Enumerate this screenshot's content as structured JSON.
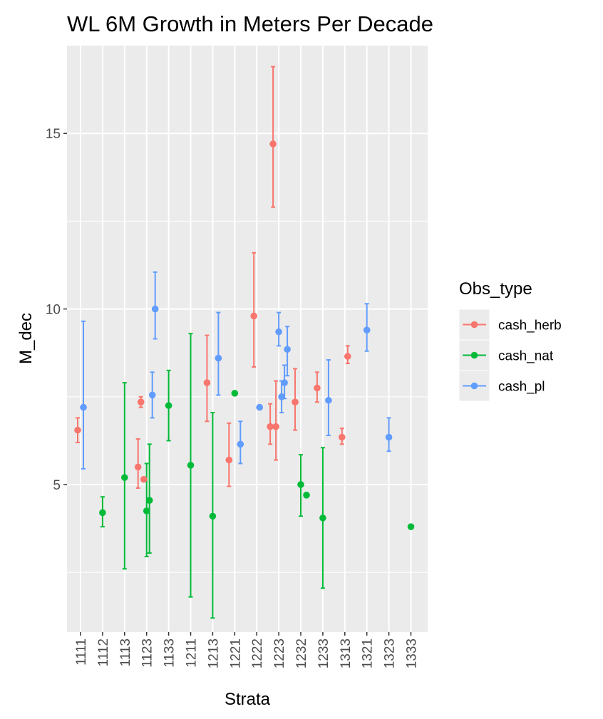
{
  "chart_data": {
    "type": "scatter",
    "title": "WL 6M Growth in Meters Per Decade",
    "xlabel": "Strata",
    "ylabel": "M_dec",
    "categories": [
      "1111",
      "1112",
      "1113",
      "1123",
      "1133",
      "1211",
      "1213",
      "1221",
      "1222",
      "1223",
      "1232",
      "1233",
      "1313",
      "1321",
      "1323",
      "1333"
    ],
    "ylim": [
      0.8,
      17.5
    ],
    "yticks": [
      5,
      10,
      15
    ],
    "grid": true,
    "legend": {
      "title": "Obs_type",
      "position": "right",
      "entries": [
        "cash_herb",
        "cash_nat",
        "cash_pl"
      ]
    },
    "series": [
      {
        "name": "cash_herb",
        "color": "#F8766D",
        "points": [
          {
            "x": "1111",
            "y": 6.55,
            "ymin": 6.2,
            "ymax": 6.9
          },
          {
            "x": "1123",
            "y": 5.5,
            "ymin": 4.9,
            "ymax": 6.3
          },
          {
            "x": "1123",
            "y": 7.35,
            "ymin": 7.2,
            "ymax": 7.5
          },
          {
            "x": "1123",
            "y": 5.15
          },
          {
            "x": "1213",
            "y": 7.9,
            "ymin": 6.8,
            "ymax": 9.25
          },
          {
            "x": "1221",
            "y": 5.7,
            "ymin": 4.95,
            "ymax": 6.75
          },
          {
            "x": "1222",
            "y": 9.8,
            "ymin": 8.35,
            "ymax": 11.6
          },
          {
            "x": "1223",
            "y": 6.65,
            "ymin": 6.15,
            "ymax": 7.3
          },
          {
            "x": "1223",
            "y": 14.7,
            "ymin": 12.9,
            "ymax": 16.9
          },
          {
            "x": "1223",
            "y": 6.65,
            "ymin": 5.7,
            "ymax": 7.95
          },
          {
            "x": "1232",
            "y": 7.35,
            "ymin": 6.55,
            "ymax": 8.3
          },
          {
            "x": "1233",
            "y": 7.75,
            "ymin": 7.35,
            "ymax": 8.2
          },
          {
            "x": "1313",
            "y": 6.35,
            "ymin": 6.15,
            "ymax": 6.6
          },
          {
            "x": "1313",
            "y": 8.65,
            "ymin": 8.45,
            "ymax": 8.95
          }
        ]
      },
      {
        "name": "cash_nat",
        "color": "#00BA38",
        "points": [
          {
            "x": "1112",
            "y": 4.2,
            "ymin": 3.8,
            "ymax": 4.65
          },
          {
            "x": "1113",
            "y": 5.2,
            "ymin": 2.6,
            "ymax": 7.9
          },
          {
            "x": "1123",
            "y": 4.25,
            "ymin": 2.95,
            "ymax": 5.6
          },
          {
            "x": "1123",
            "y": 4.55,
            "ymin": 3.05,
            "ymax": 6.15
          },
          {
            "x": "1133",
            "y": 7.25,
            "ymin": 6.25,
            "ymax": 8.25
          },
          {
            "x": "1211",
            "y": 5.55,
            "ymin": 1.8,
            "ymax": 9.3
          },
          {
            "x": "1213",
            "y": 4.1,
            "ymin": 1.2,
            "ymax": 7.05
          },
          {
            "x": "1221",
            "y": 7.6
          },
          {
            "x": "1232",
            "y": 5.0,
            "ymin": 4.1,
            "ymax": 5.85
          },
          {
            "x": "1232",
            "y": 4.7
          },
          {
            "x": "1233",
            "y": 4.05,
            "ymin": 2.05,
            "ymax": 6.05
          },
          {
            "x": "1333",
            "y": 3.8
          }
        ]
      },
      {
        "name": "cash_pl",
        "color": "#619CFF",
        "points": [
          {
            "x": "1111",
            "y": 7.2,
            "ymin": 5.45,
            "ymax": 9.65
          },
          {
            "x": "1123",
            "y": 7.55,
            "ymin": 6.9,
            "ymax": 8.2
          },
          {
            "x": "1123",
            "y": 10.0,
            "ymin": 9.15,
            "ymax": 11.05
          },
          {
            "x": "1213",
            "y": 8.6,
            "ymin": 7.55,
            "ymax": 9.9
          },
          {
            "x": "1221",
            "y": 6.15,
            "ymin": 5.6,
            "ymax": 6.8
          },
          {
            "x": "1222",
            "y": 7.2
          },
          {
            "x": "1223",
            "y": 9.35,
            "ymin": 8.95,
            "ymax": 9.9
          },
          {
            "x": "1223",
            "y": 7.5,
            "ymin": 7.05,
            "ymax": 7.95
          },
          {
            "x": "1223",
            "y": 7.9,
            "ymin": 7.45,
            "ymax": 8.4
          },
          {
            "x": "1223",
            "y": 8.85,
            "ymin": 8.1,
            "ymax": 9.5
          },
          {
            "x": "1233",
            "y": 7.4,
            "ymin": 6.4,
            "ymax": 8.55
          },
          {
            "x": "1321",
            "y": 9.4,
            "ymin": 8.8,
            "ymax": 10.15
          },
          {
            "x": "1323",
            "y": 6.35,
            "ymin": 5.95,
            "ymax": 6.9
          }
        ]
      }
    ]
  }
}
